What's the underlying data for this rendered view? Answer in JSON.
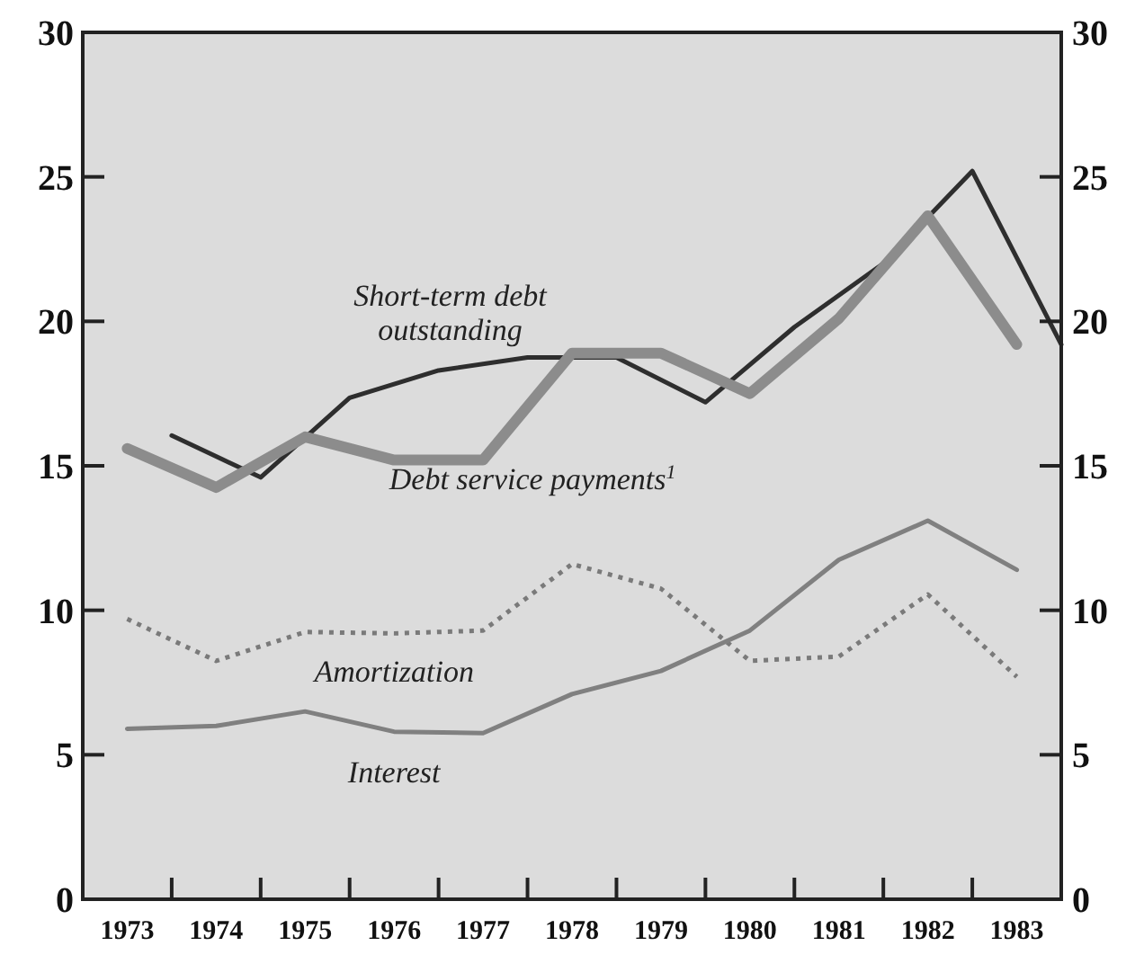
{
  "chart_data": {
    "type": "line",
    "xlim": [
      1973,
      1984
    ],
    "xticks": [
      {
        "value": 1973.5,
        "label": "1973"
      },
      {
        "value": 1974,
        "label": null
      },
      {
        "value": 1974.5,
        "label": "1974"
      },
      {
        "value": 1975,
        "label": null
      },
      {
        "value": 1975.5,
        "label": "1975"
      },
      {
        "value": 1976,
        "label": null
      },
      {
        "value": 1976.5,
        "label": "1976"
      },
      {
        "value": 1977,
        "label": null
      },
      {
        "value": 1977.5,
        "label": "1977"
      },
      {
        "value": 1978,
        "label": null
      },
      {
        "value": 1978.5,
        "label": "1978"
      },
      {
        "value": 1979,
        "label": null
      },
      {
        "value": 1979.5,
        "label": "1979"
      },
      {
        "value": 1980,
        "label": null
      },
      {
        "value": 1980.5,
        "label": "1980"
      },
      {
        "value": 1981,
        "label": null
      },
      {
        "value": 1981.5,
        "label": "1981"
      },
      {
        "value": 1982,
        "label": null
      },
      {
        "value": 1982.5,
        "label": "1982"
      },
      {
        "value": 1983,
        "label": null
      },
      {
        "value": 1983.5,
        "label": "1983"
      }
    ],
    "ylim": [
      0,
      30
    ],
    "yticks": [
      0,
      5,
      10,
      15,
      20,
      25,
      30
    ],
    "y2lim": [
      0,
      30
    ],
    "y2ticks": [
      0,
      5,
      10,
      15,
      20,
      25,
      30
    ],
    "grid": false,
    "marker": "none",
    "series": [
      {
        "name": "Short-term debt outstanding",
        "color": "#2e2e2e",
        "line_style": "solid",
        "x": [
          1974,
          1975,
          1976,
          1977,
          1978,
          1979,
          1980,
          1981,
          1982,
          1983,
          1984
        ],
        "values": [
          16.05,
          14.6,
          17.35,
          18.3,
          18.75,
          18.75,
          17.2,
          19.8,
          22.0,
          25.2,
          19.2
        ]
      },
      {
        "name": "Debt service payments$^{1}$",
        "color": "#8c8c8c",
        "line_style": "solid",
        "x": [
          1973.5,
          1974.5,
          1975.5,
          1976.5,
          1977.5,
          1978.5,
          1979.5,
          1980.5,
          1981.5,
          1982.5,
          1983.5
        ],
        "values": [
          15.6,
          14.25,
          16.0,
          15.2,
          15.2,
          18.9,
          18.9,
          17.5,
          20.1,
          23.65,
          19.2
        ]
      },
      {
        "name": "Amortization",
        "color": "#7a7a7a",
        "line_style": "dotted",
        "x": [
          1973.5,
          1974.5,
          1975.5,
          1976.5,
          1977.5,
          1978.5,
          1979.5,
          1980.5,
          1981.5,
          1982.5,
          1983.5
        ],
        "values": [
          9.7,
          8.25,
          9.25,
          9.2,
          9.3,
          11.6,
          10.75,
          8.25,
          8.4,
          10.55,
          7.7
        ]
      },
      {
        "name": "Interest",
        "color": "#808080",
        "line_style": "solid",
        "x": [
          1973.5,
          1974.5,
          1975.5,
          1976.5,
          1977.5,
          1978.5,
          1979.5,
          1980.5,
          1981.5,
          1982.5,
          1983.5
        ],
        "values": [
          5.9,
          6.0,
          6.5,
          5.8,
          5.75,
          7.1,
          7.9,
          9.3,
          11.75,
          13.1,
          11.4
        ]
      }
    ]
  }
}
